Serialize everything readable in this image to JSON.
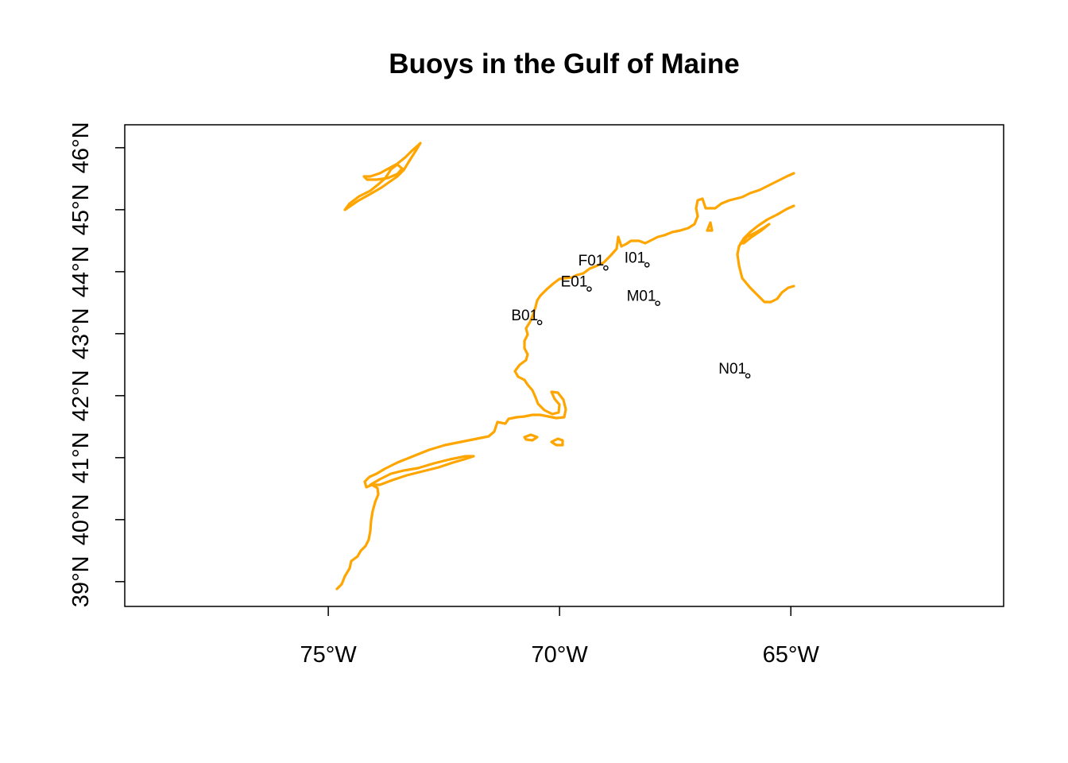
{
  "title": "Buoys in the Gulf of Maine",
  "colors": {
    "coastline": "#FFA500",
    "frame": "#000000",
    "buoy_marker": "#000000"
  },
  "axes": {
    "x": {
      "min": -79.4,
      "max": -60.4,
      "ticks": [
        -75,
        -70,
        -65
      ],
      "tick_labels": [
        "75°W",
        "70°W",
        "65°W"
      ]
    },
    "y": {
      "min": 38.6,
      "max": 46.37,
      "ticks": [
        39,
        40,
        41,
        42,
        43,
        44,
        45,
        46
      ],
      "tick_labels": [
        "39°N",
        "40°N",
        "41°N",
        "42°N",
        "43°N",
        "44°N",
        "45°N",
        "46°N"
      ]
    }
  },
  "buoys": [
    {
      "name": "B01",
      "lon": -70.43,
      "lat": 43.18
    },
    {
      "name": "E01",
      "lon": -69.36,
      "lat": 43.72
    },
    {
      "name": "F01",
      "lon": -69.0,
      "lat": 44.06
    },
    {
      "name": "I01",
      "lon": -68.11,
      "lat": 44.11
    },
    {
      "name": "M01",
      "lon": -67.88,
      "lat": 43.49
    },
    {
      "name": "N01",
      "lon": -65.93,
      "lat": 42.32
    }
  ]
}
